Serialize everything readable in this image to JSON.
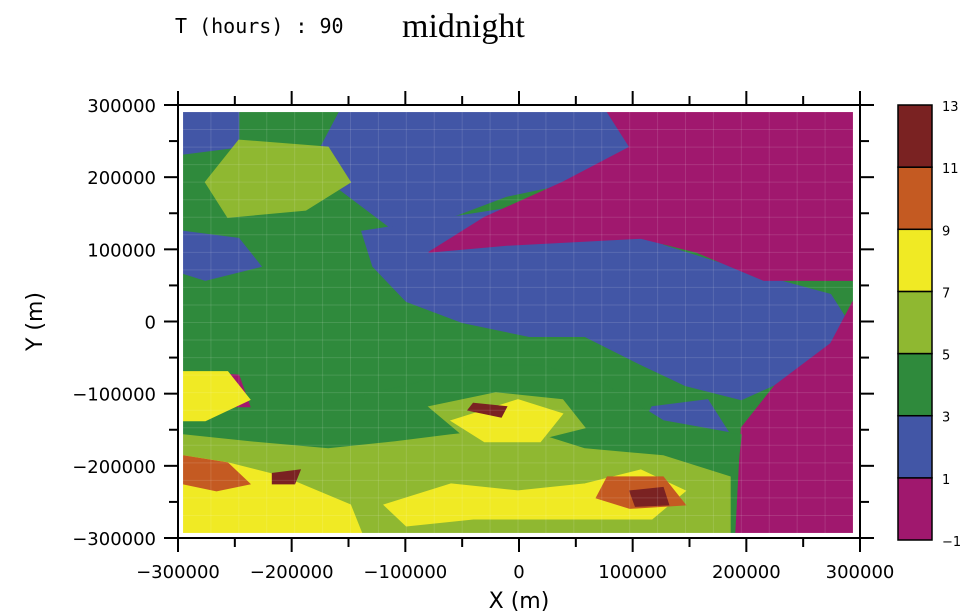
{
  "header": {
    "time_label": "T (hours) : 90",
    "subtitle": "midnight"
  },
  "chart_data": {
    "type": "heatmap",
    "title": "midnight",
    "xlabel": "X (m)",
    "ylabel": "Y (m)",
    "xlim": [
      -300000,
      300000
    ],
    "ylim": [
      -300000,
      300000
    ],
    "x_ticks": [
      -300000,
      -200000,
      -100000,
      0,
      100000,
      200000,
      300000
    ],
    "x_tick_labels": [
      "−300000",
      "−200000",
      "−100000",
      "0",
      "100000",
      "200000",
      "300000"
    ],
    "y_ticks": [
      -300000,
      -200000,
      -100000,
      0,
      100000,
      200000,
      300000
    ],
    "y_tick_labels": [
      "−300000",
      "−200000",
      "−100000",
      "0",
      "100000",
      "200000",
      "300000"
    ],
    "colorbar": {
      "levels": [
        -1,
        1,
        3,
        5,
        7,
        9,
        11,
        13
      ],
      "labels": [
        "−1",
        "1",
        "3",
        "5",
        "7",
        "9",
        "11",
        "13"
      ],
      "colors": [
        "#a0186e",
        "#4256a6",
        "#2f8a3c",
        "#8fb831",
        "#f0ea24",
        "#c45a22",
        "#7a2222"
      ]
    },
    "regions": [
      {
        "level": 1,
        "poly": [
          [
            -100000,
            300000
          ],
          [
            80000,
            300000
          ],
          [
            110000,
            250000
          ],
          [
            50000,
            200000
          ],
          [
            -10000,
            180000
          ],
          [
            -60000,
            150000
          ],
          [
            -110000,
            130000
          ],
          [
            -160000,
            190000
          ],
          [
            -180000,
            240000
          ],
          [
            -160000,
            300000
          ]
        ]
      },
      {
        "level": 1,
        "poly": [
          [
            -300000,
            300000
          ],
          [
            -250000,
            300000
          ],
          [
            -250000,
            250000
          ],
          [
            -300000,
            240000
          ]
        ]
      },
      {
        "level": 1,
        "poly": [
          [
            -300000,
            130000
          ],
          [
            -250000,
            120000
          ],
          [
            -230000,
            80000
          ],
          [
            -280000,
            60000
          ],
          [
            -300000,
            70000
          ]
        ]
      },
      {
        "level": 1,
        "poly": [
          [
            -140000,
            130000
          ],
          [
            -60000,
            150000
          ],
          [
            20000,
            170000
          ],
          [
            80000,
            180000
          ],
          [
            130000,
            110000
          ],
          [
            210000,
            70000
          ],
          [
            280000,
            40000
          ],
          [
            300000,
            -10000
          ],
          [
            270000,
            -60000
          ],
          [
            200000,
            -110000
          ],
          [
            150000,
            -90000
          ],
          [
            110000,
            -60000
          ],
          [
            60000,
            -20000
          ],
          [
            10000,
            -20000
          ],
          [
            -50000,
            0
          ],
          [
            -100000,
            30000
          ],
          [
            -130000,
            80000
          ]
        ]
      },
      {
        "level": 1,
        "poly": [
          [
            120000,
            -120000
          ],
          [
            170000,
            -110000
          ],
          [
            190000,
            -160000
          ],
          [
            150000,
            -180000
          ],
          [
            110000,
            -150000
          ]
        ]
      },
      {
        "level": 0,
        "poly": [
          [
            80000,
            300000
          ],
          [
            300000,
            300000
          ],
          [
            300000,
            60000
          ],
          [
            220000,
            60000
          ],
          [
            160000,
            100000
          ],
          [
            110000,
            120000
          ],
          [
            -10000,
            110000
          ],
          [
            -80000,
            100000
          ],
          [
            -30000,
            150000
          ],
          [
            40000,
            200000
          ],
          [
            100000,
            250000
          ]
        ]
      },
      {
        "level": 0,
        "poly": [
          [
            300000,
            30000
          ],
          [
            300000,
            -300000
          ],
          [
            195000,
            -300000
          ],
          [
            200000,
            -150000
          ],
          [
            230000,
            -90000
          ],
          [
            280000,
            -30000
          ]
        ]
      },
      {
        "level": 0,
        "poly": [
          [
            -290000,
            -70000
          ],
          [
            -250000,
            -75000
          ],
          [
            -240000,
            -120000
          ],
          [
            -290000,
            -120000
          ]
        ]
      },
      {
        "level": 2,
        "poly": [
          [
            -300000,
            -300000
          ],
          [
            190000,
            -300000
          ],
          [
            200000,
            -160000
          ],
          [
            130000,
            -140000
          ],
          [
            80000,
            -90000
          ],
          [
            20000,
            -60000
          ],
          [
            -40000,
            -60000
          ],
          [
            -100000,
            -90000
          ],
          [
            -160000,
            -110000
          ],
          [
            -230000,
            -130000
          ],
          [
            -300000,
            -130000
          ]
        ]
      },
      {
        "level": 3,
        "poly": [
          [
            -300000,
            -300000
          ],
          [
            190000,
            -300000
          ],
          [
            190000,
            -220000
          ],
          [
            130000,
            -190000
          ],
          [
            60000,
            -180000
          ],
          [
            0,
            -150000
          ],
          [
            -60000,
            -160000
          ],
          [
            -110000,
            -170000
          ],
          [
            -170000,
            -180000
          ],
          [
            -240000,
            -170000
          ],
          [
            -300000,
            -160000
          ]
        ]
      },
      {
        "level": 3,
        "poly": [
          [
            -250000,
            260000
          ],
          [
            -170000,
            250000
          ],
          [
            -150000,
            200000
          ],
          [
            -190000,
            160000
          ],
          [
            -260000,
            150000
          ],
          [
            -280000,
            200000
          ]
        ]
      },
      {
        "level": 3,
        "poly": [
          [
            -80000,
            -120000
          ],
          [
            -20000,
            -100000
          ],
          [
            40000,
            -110000
          ],
          [
            60000,
            -150000
          ],
          [
            10000,
            -170000
          ],
          [
            -50000,
            -160000
          ]
        ]
      },
      {
        "level": 4,
        "poly": [
          [
            -300000,
            -300000
          ],
          [
            -140000,
            -300000
          ],
          [
            -150000,
            -260000
          ],
          [
            -210000,
            -220000
          ],
          [
            -260000,
            -200000
          ],
          [
            -300000,
            -190000
          ]
        ]
      },
      {
        "level": 4,
        "poly": [
          [
            -300000,
            -70000
          ],
          [
            -260000,
            -70000
          ],
          [
            -240000,
            -110000
          ],
          [
            -280000,
            -140000
          ],
          [
            -300000,
            -140000
          ]
        ]
      },
      {
        "level": 4,
        "poly": [
          [
            -60000,
            -140000
          ],
          [
            0,
            -110000
          ],
          [
            40000,
            -130000
          ],
          [
            20000,
            -170000
          ],
          [
            -30000,
            -170000
          ]
        ]
      },
      {
        "level": 4,
        "poly": [
          [
            -120000,
            -260000
          ],
          [
            -60000,
            -230000
          ],
          [
            0,
            -240000
          ],
          [
            60000,
            -230000
          ],
          [
            110000,
            -210000
          ],
          [
            150000,
            -240000
          ],
          [
            120000,
            -280000
          ],
          [
            40000,
            -280000
          ],
          [
            -40000,
            -280000
          ],
          [
            -100000,
            -290000
          ]
        ]
      },
      {
        "level": 5,
        "poly": [
          [
            -300000,
            -190000
          ],
          [
            -260000,
            -200000
          ],
          [
            -240000,
            -230000
          ],
          [
            -270000,
            -240000
          ],
          [
            -300000,
            -230000
          ]
        ]
      },
      {
        "level": 5,
        "poly": [
          [
            80000,
            -220000
          ],
          [
            130000,
            -220000
          ],
          [
            150000,
            -260000
          ],
          [
            100000,
            -265000
          ],
          [
            70000,
            -250000
          ]
        ]
      },
      {
        "level": 6,
        "poly": [
          [
            -40000,
            -115000
          ],
          [
            -10000,
            -120000
          ],
          [
            -15000,
            -135000
          ],
          [
            -45000,
            -125000
          ]
        ]
      },
      {
        "level": 6,
        "poly": [
          [
            100000,
            -240000
          ],
          [
            130000,
            -235000
          ],
          [
            135000,
            -260000
          ],
          [
            105000,
            -262000
          ]
        ]
      },
      {
        "level": 6,
        "poly": [
          [
            -220000,
            -215000
          ],
          [
            -195000,
            -210000
          ],
          [
            -200000,
            -230000
          ],
          [
            -220000,
            -230000
          ]
        ]
      }
    ]
  }
}
